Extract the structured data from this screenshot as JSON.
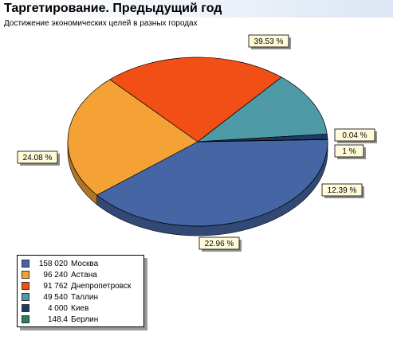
{
  "header": {
    "title": "Таргетирование. Предыдущий год",
    "subtitle": "Достижение экономических целей в разных городах"
  },
  "chart_data": {
    "type": "pie",
    "title": "Таргетирование. Предыдущий год",
    "subtitle": "Достижение экономических целей в разных городах",
    "legend_position": "bottom-left",
    "slices": [
      {
        "name": "Москва",
        "value": 158020,
        "value_label": "158 020",
        "percent_label": "39.53 %",
        "color": "#4665a4"
      },
      {
        "name": "Астана",
        "value": 96240,
        "value_label": "96 240",
        "percent_label": "24.08 %",
        "color": "#f4a236"
      },
      {
        "name": "Днепропетровск",
        "value": 91762,
        "value_label": "91 762",
        "percent_label": "22.96 %",
        "color": "#f24f17"
      },
      {
        "name": "Таллин",
        "value": 49540,
        "value_label": "49 540",
        "percent_label": "12.39 %",
        "color": "#4e9aa7"
      },
      {
        "name": "Киев",
        "value": 4000,
        "value_label": "4 000",
        "percent_label": "1 %",
        "color": "#1f3a66"
      },
      {
        "name": "Берлин",
        "value": 148.4,
        "value_label": "148.4",
        "percent_label": "0.04 %",
        "color": "#2e7c5c"
      }
    ]
  }
}
